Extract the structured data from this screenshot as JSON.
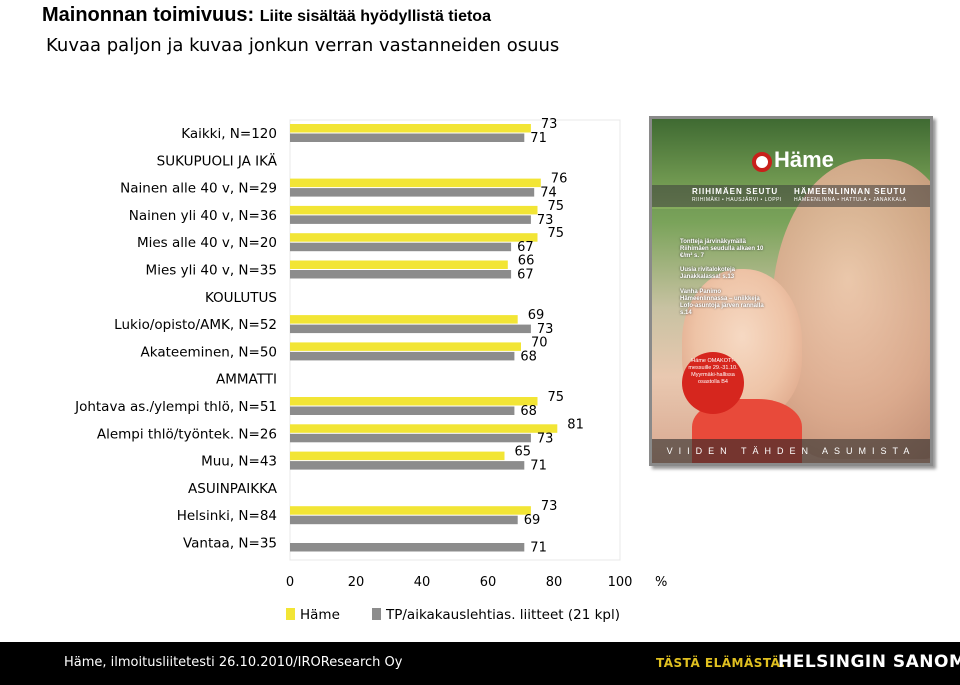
{
  "header": {
    "title_main": "Mainonnan toimivuus:",
    "title_sub": "Liite sisältää hyödyllistä tietoa",
    "subtitle": "Kuvaa paljon ja kuvaa jonkun verran vastanneiden osuus"
  },
  "chart_data": {
    "type": "bar",
    "orientation": "horizontal",
    "rows": [
      {
        "label": "Kaikki, N=120",
        "header": false,
        "hame": 73,
        "tp": 71
      },
      {
        "label": "SUKUPUOLI JA IKÄ",
        "header": true
      },
      {
        "label": "Nainen alle 40 v, N=29",
        "header": false,
        "hame": 76,
        "tp": 74
      },
      {
        "label": "Nainen yli 40 v, N=36",
        "header": false,
        "hame": 75,
        "tp": 73
      },
      {
        "label": "Mies alle 40 v, N=20",
        "header": false,
        "hame": 75,
        "tp": 67
      },
      {
        "label": "Mies yli 40 v, N=35",
        "header": false,
        "hame": 66,
        "tp": 67
      },
      {
        "label": "KOULUTUS",
        "header": true
      },
      {
        "label": "Lukio/opisto/AMK, N=52",
        "header": false,
        "hame": 69,
        "tp": 73
      },
      {
        "label": "Akateeminen, N=50",
        "header": false,
        "hame": 70,
        "tp": 68
      },
      {
        "label": "AMMATTI",
        "header": true
      },
      {
        "label": "Johtava as./ylempi thlö, N=51",
        "header": false,
        "hame": 75,
        "tp": 68
      },
      {
        "label": "Alempi thlö/työntek. N=26",
        "header": false,
        "hame": 81,
        "tp": 73
      },
      {
        "label": "Muu, N=43",
        "header": false,
        "hame": 65,
        "tp": 71
      },
      {
        "label": "ASUINPAIKKA",
        "header": true
      },
      {
        "label": "Helsinki, N=84",
        "header": false,
        "hame": 73,
        "tp": 69
      },
      {
        "label": "Vantaa, N=35",
        "header": false,
        "hame": null,
        "tp": 71
      }
    ],
    "series": [
      {
        "key": "hame",
        "name": "Häme",
        "color": "#f2e535"
      },
      {
        "key": "tp",
        "name": "TP/aikakauslehtias. liitteet (21 kpl)",
        "color": "#8c8c8c"
      }
    ],
    "xlim": [
      0,
      100
    ],
    "xticks": [
      0,
      20,
      40,
      60,
      80,
      100
    ],
    "x_unit": "%",
    "legend_position": "bottom",
    "grid": false
  },
  "magazine": {
    "logo": "Häme",
    "region_left": "RIIHIMÄEN SEUTU",
    "region_left_small": "RIIHIMÄKI • HAUSJÄRVI • LOPPI",
    "region_right": "HÄMEENLINNAN SEUTU",
    "region_right_small": "HÄMEENLINNA • HATTULA • JANAKKALA",
    "text1": "Tontteja järvinäkymällä Riihimäen seudulla alkaen 10 €/m² s. 7",
    "text2": "Uusia rivitalokoteja Janakkalassa! s.13",
    "text3": "Vanha Panimo Hämeenlinnassa – uniikkeja Lofo-asuntoja järven rannalla s.14",
    "circle": "Häme OMAKOTI- messuille 29.-31.10. Myyrmäki-hallissa osastolla B4",
    "footer": "VIIDEN TÄHDEN ASUMISTA"
  },
  "footer": {
    "source": "Häme, ilmoitusliitetesti 26.10.2010/IROResearch Oy",
    "slogan": "TÄSTÄ ELÄMÄSTÄ.",
    "brand": "HELSINGIN SANOMAT"
  }
}
